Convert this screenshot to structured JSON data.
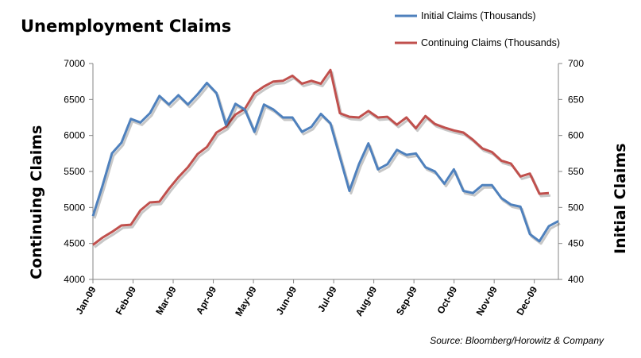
{
  "chart_data": {
    "type": "line",
    "title": "Unemployment Claims",
    "source": "Source: Bloomberg/Horowitz & Company",
    "left_axis": {
      "label": "Continuing Claims",
      "range": [
        4000,
        7000
      ],
      "ticks": [
        "4000",
        "4500",
        "5000",
        "5500",
        "6000",
        "6500",
        "7000"
      ]
    },
    "right_axis": {
      "label": "Initial Claims",
      "range": [
        400,
        700
      ],
      "ticks": [
        "400",
        "450",
        "500",
        "550",
        "600",
        "650",
        "700"
      ]
    },
    "x_ticks": [
      "Jan-09",
      "Feb-09",
      "Mar-09",
      "Apr-09",
      "May-09",
      "Jun-09",
      "Jul-09",
      "Aug-09",
      "Sep-09",
      "Oct-09",
      "Nov-09",
      "Dec-09"
    ],
    "legend_position": "top-right",
    "series": [
      {
        "name": "Initial Claims (Thousands)",
        "axis": "right",
        "color": "#4F81BD",
        "values": [
          488,
          530,
          575,
          590,
          623,
          618,
          631,
          655,
          643,
          656,
          643,
          657,
          673,
          659,
          615,
          644,
          636,
          605,
          643,
          636,
          625,
          625,
          605,
          612,
          630,
          617,
          570,
          523,
          560,
          589,
          553,
          560,
          580,
          573,
          575,
          556,
          550,
          533,
          553,
          523,
          520,
          531,
          531,
          513,
          504,
          501,
          463,
          453,
          474,
          481
        ]
      },
      {
        "name": "Continuing Claims (Thousands)",
        "axis": "left",
        "color": "#C0504D",
        "values": [
          4480,
          4580,
          4660,
          4750,
          4760,
          4960,
          5070,
          5080,
          5260,
          5420,
          5560,
          5740,
          5840,
          6040,
          6120,
          6290,
          6370,
          6590,
          6680,
          6750,
          6760,
          6830,
          6720,
          6760,
          6720,
          6910,
          6310,
          6260,
          6250,
          6340,
          6250,
          6260,
          6150,
          6250,
          6100,
          6270,
          6160,
          6110,
          6070,
          6040,
          5940,
          5820,
          5770,
          5650,
          5610,
          5430,
          5470,
          5190,
          5200
        ]
      }
    ]
  }
}
